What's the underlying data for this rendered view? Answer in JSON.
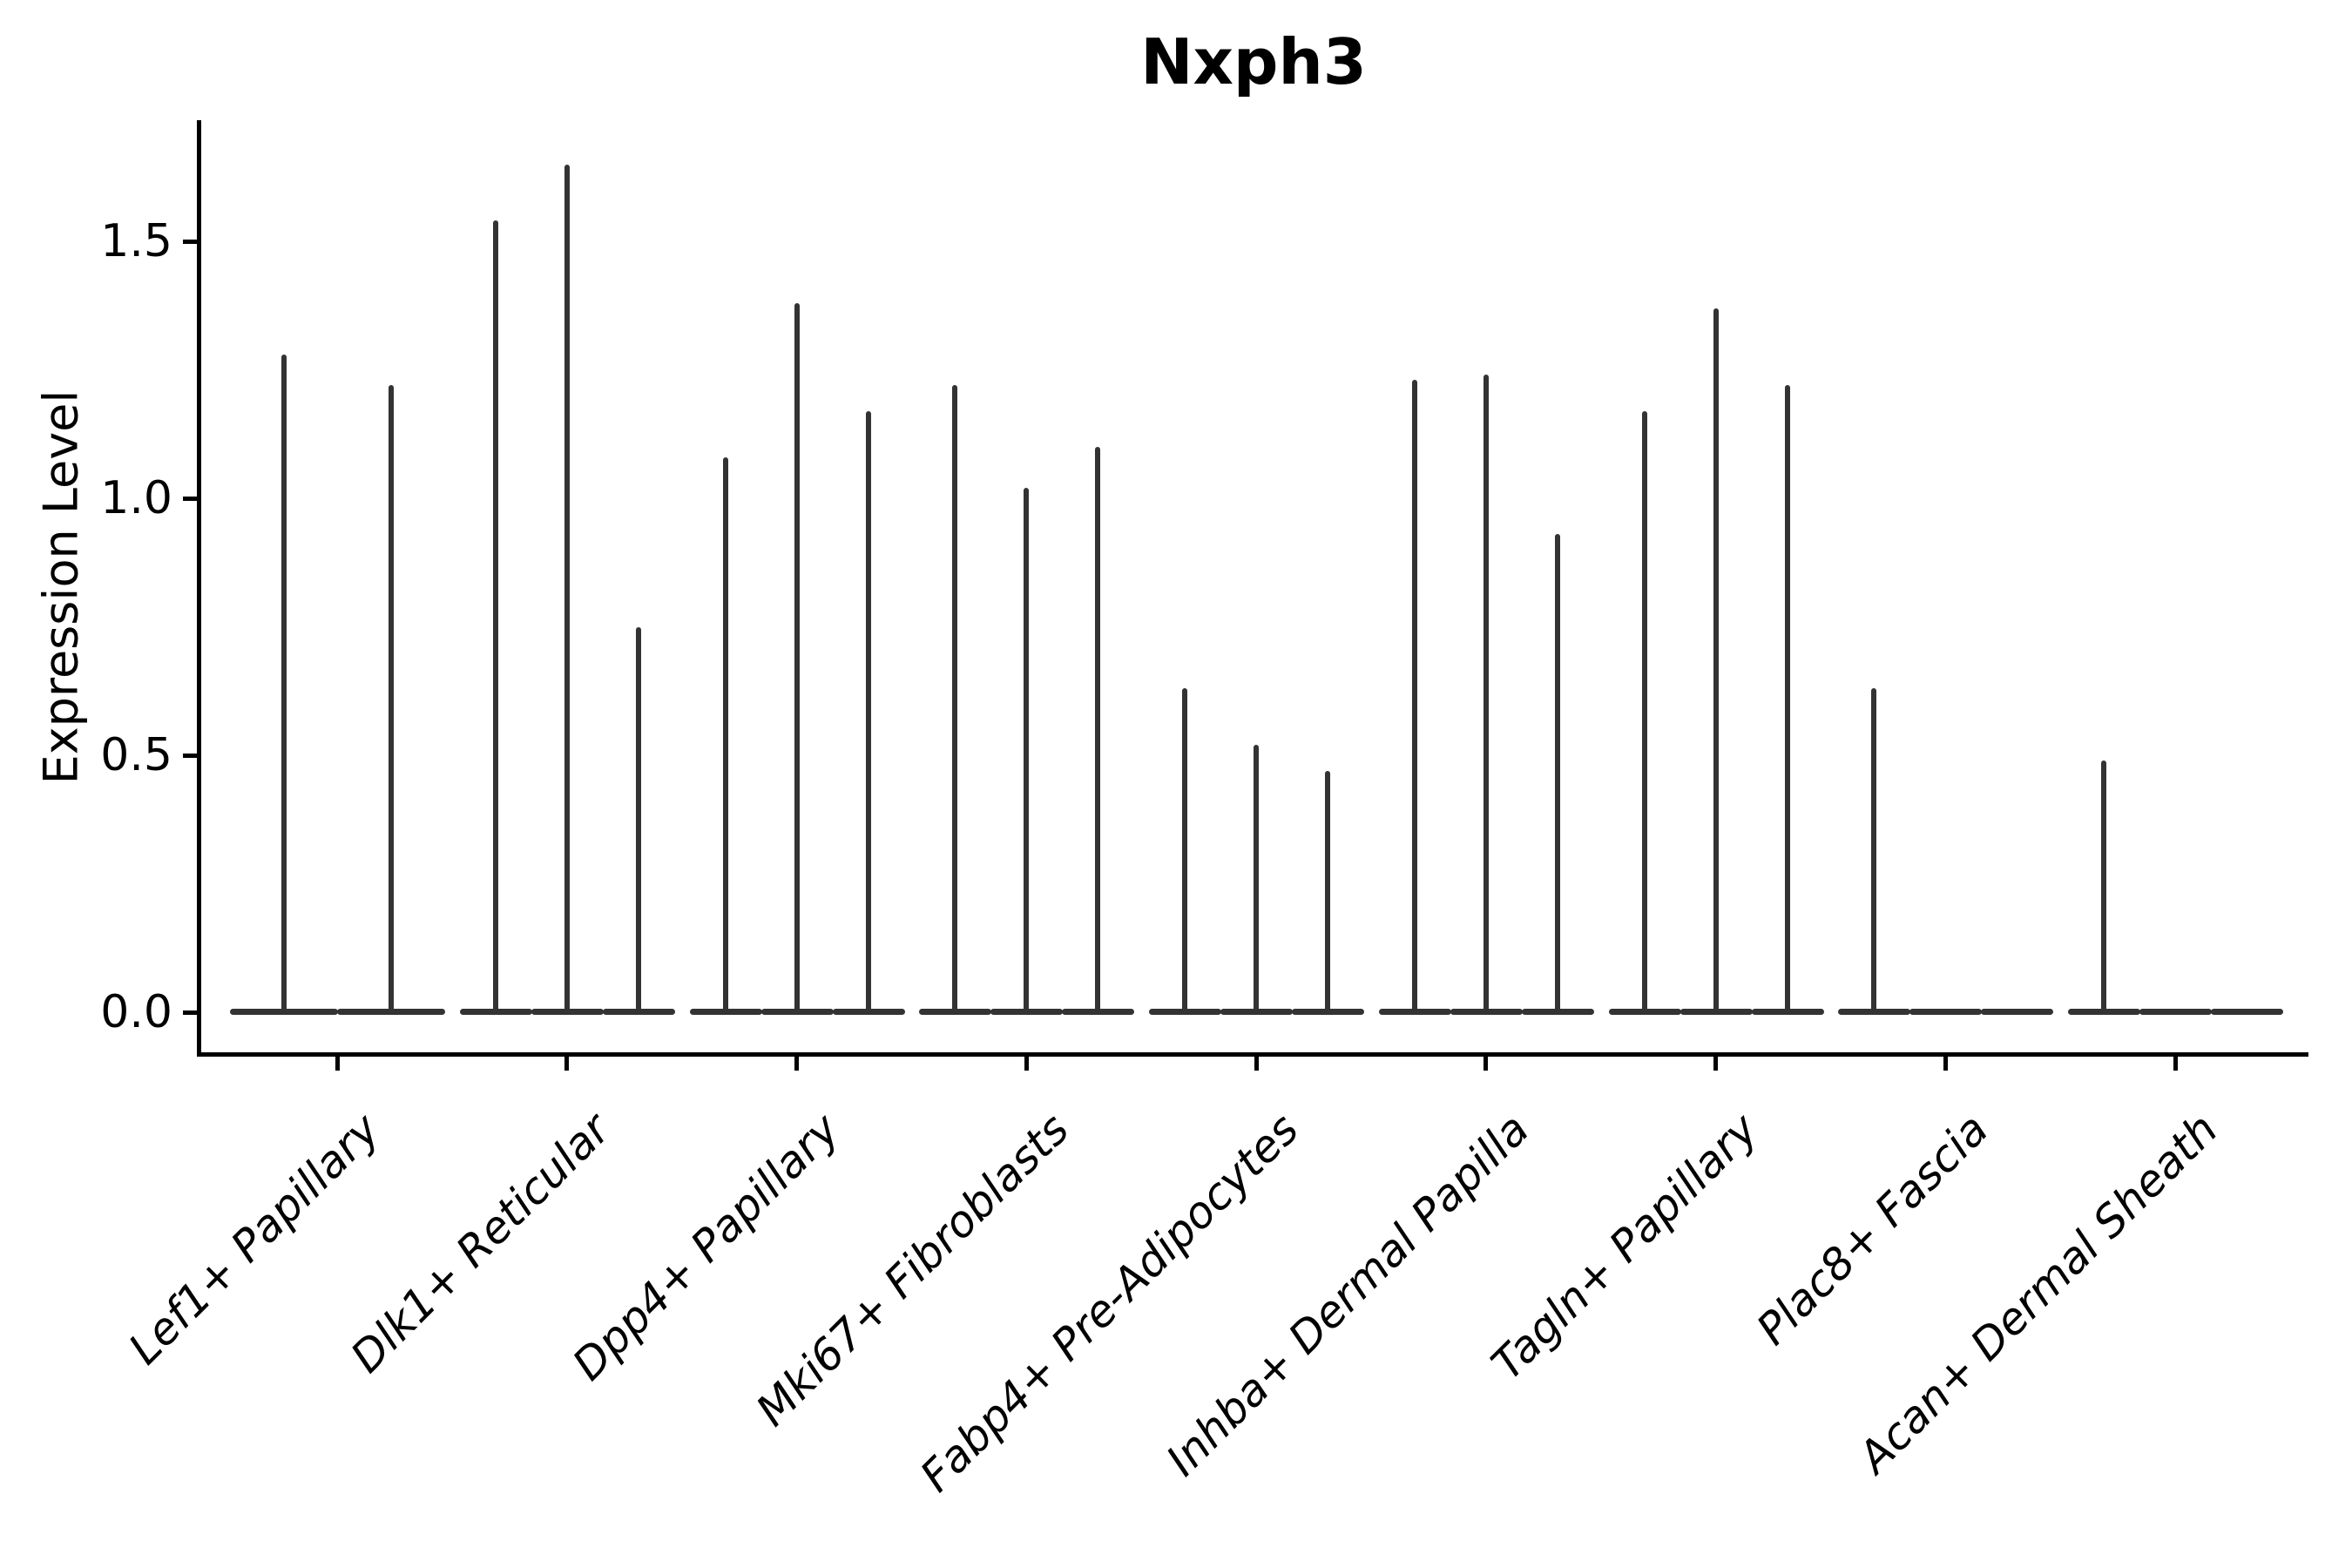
{
  "colors": {
    "background": "#ffffff",
    "violin": "#333333",
    "axis": "#000000",
    "text": "#000000"
  },
  "chart_data": {
    "type": "violin",
    "title": "Nxph3",
    "xlabel": "",
    "ylabel": "Expression Level",
    "ylim": [
      -0.08,
      1.74
    ],
    "yticks": [
      0.0,
      0.5,
      1.0,
      1.5
    ],
    "ytick_labels": [
      "0.0",
      "0.5",
      "1.0",
      "1.5"
    ],
    "grid": false,
    "legend": false,
    "xtick_rotation_deg": 45,
    "xtick_style": "italic",
    "categories": [
      "Lef1+ Papillary",
      "Dlk1+ Reticular",
      "Dpp4+ Papillary",
      "Mki67+ Fibroblasts",
      "Fabp4+ Pre-Adipocytes",
      "Inhba+ Dermal Papilla",
      "Tagln+ Papillary",
      "Plac8+ Fascia",
      "Acan+ Dermal Sheath"
    ],
    "series_note": "Each category shows 2-3 narrow violins; nearly all density mass sits at expression 0 (flat wide base) with a thin spike up to the max expression value.",
    "violin_max_values": [
      [
        1.28,
        1.22
      ],
      [
        1.54,
        1.65,
        0.75
      ],
      [
        1.08,
        1.38,
        1.17
      ],
      [
        1.22,
        1.02,
        1.1
      ],
      [
        0.63,
        0.52,
        0.47
      ],
      [
        1.23,
        1.24,
        0.93
      ],
      [
        1.17,
        1.37,
        1.22
      ],
      [
        0.63,
        0.0,
        0.0
      ],
      [
        0.49,
        0.0,
        0.0
      ]
    ]
  }
}
